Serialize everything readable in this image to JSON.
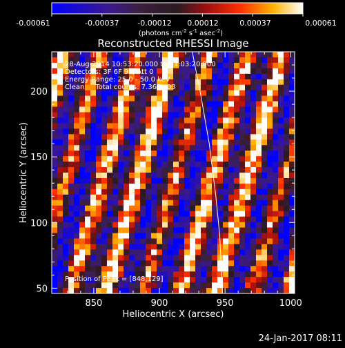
{
  "colorbar": {
    "tick_labels": [
      "-0.00061",
      "-0.00037",
      "-0.00012",
      "0.00012",
      "0.00037",
      "0.00061"
    ],
    "range": [
      -0.00061,
      0.00061
    ],
    "units_line": "(photons cm",
    "units_exp1": "-2",
    "units_mid": " s",
    "units_exp2": "-1",
    "units_mid2": " asec",
    "units_exp3": "-2",
    "units_end": ")"
  },
  "chart_data": {
    "type": "heatmap",
    "title": "Reconstructed RHESSI Image",
    "xlabel": "Heliocentric X (arcsec)",
    "ylabel": "Heliocentric Y (arcsec)",
    "xlim": [
      818,
      1003
    ],
    "ylim": [
      46,
      230
    ],
    "xticks": [
      850,
      900,
      950,
      1000
    ],
    "yticks": [
      50,
      100,
      150,
      200
    ],
    "grid": false,
    "limb_curve": [
      [
        925,
        230
      ],
      [
        931,
        200
      ],
      [
        938,
        160
      ],
      [
        943,
        120
      ],
      [
        946,
        90
      ],
      [
        948,
        46
      ]
    ],
    "annotations": {
      "line1": "28-Aug-2014 10:53:20.000 to 11:03:20.000",
      "line2": "Detectors: 3F 6F 9F, Att 0",
      "line3": "Energy Range: 25.0 - 50.0 keV",
      "line4": "Clean     Total counts: 7.36E+03",
      "peak": "Position of Peak = [848,129]"
    }
  },
  "footer": {
    "date_time": "24-Jan-2017 08:11"
  }
}
